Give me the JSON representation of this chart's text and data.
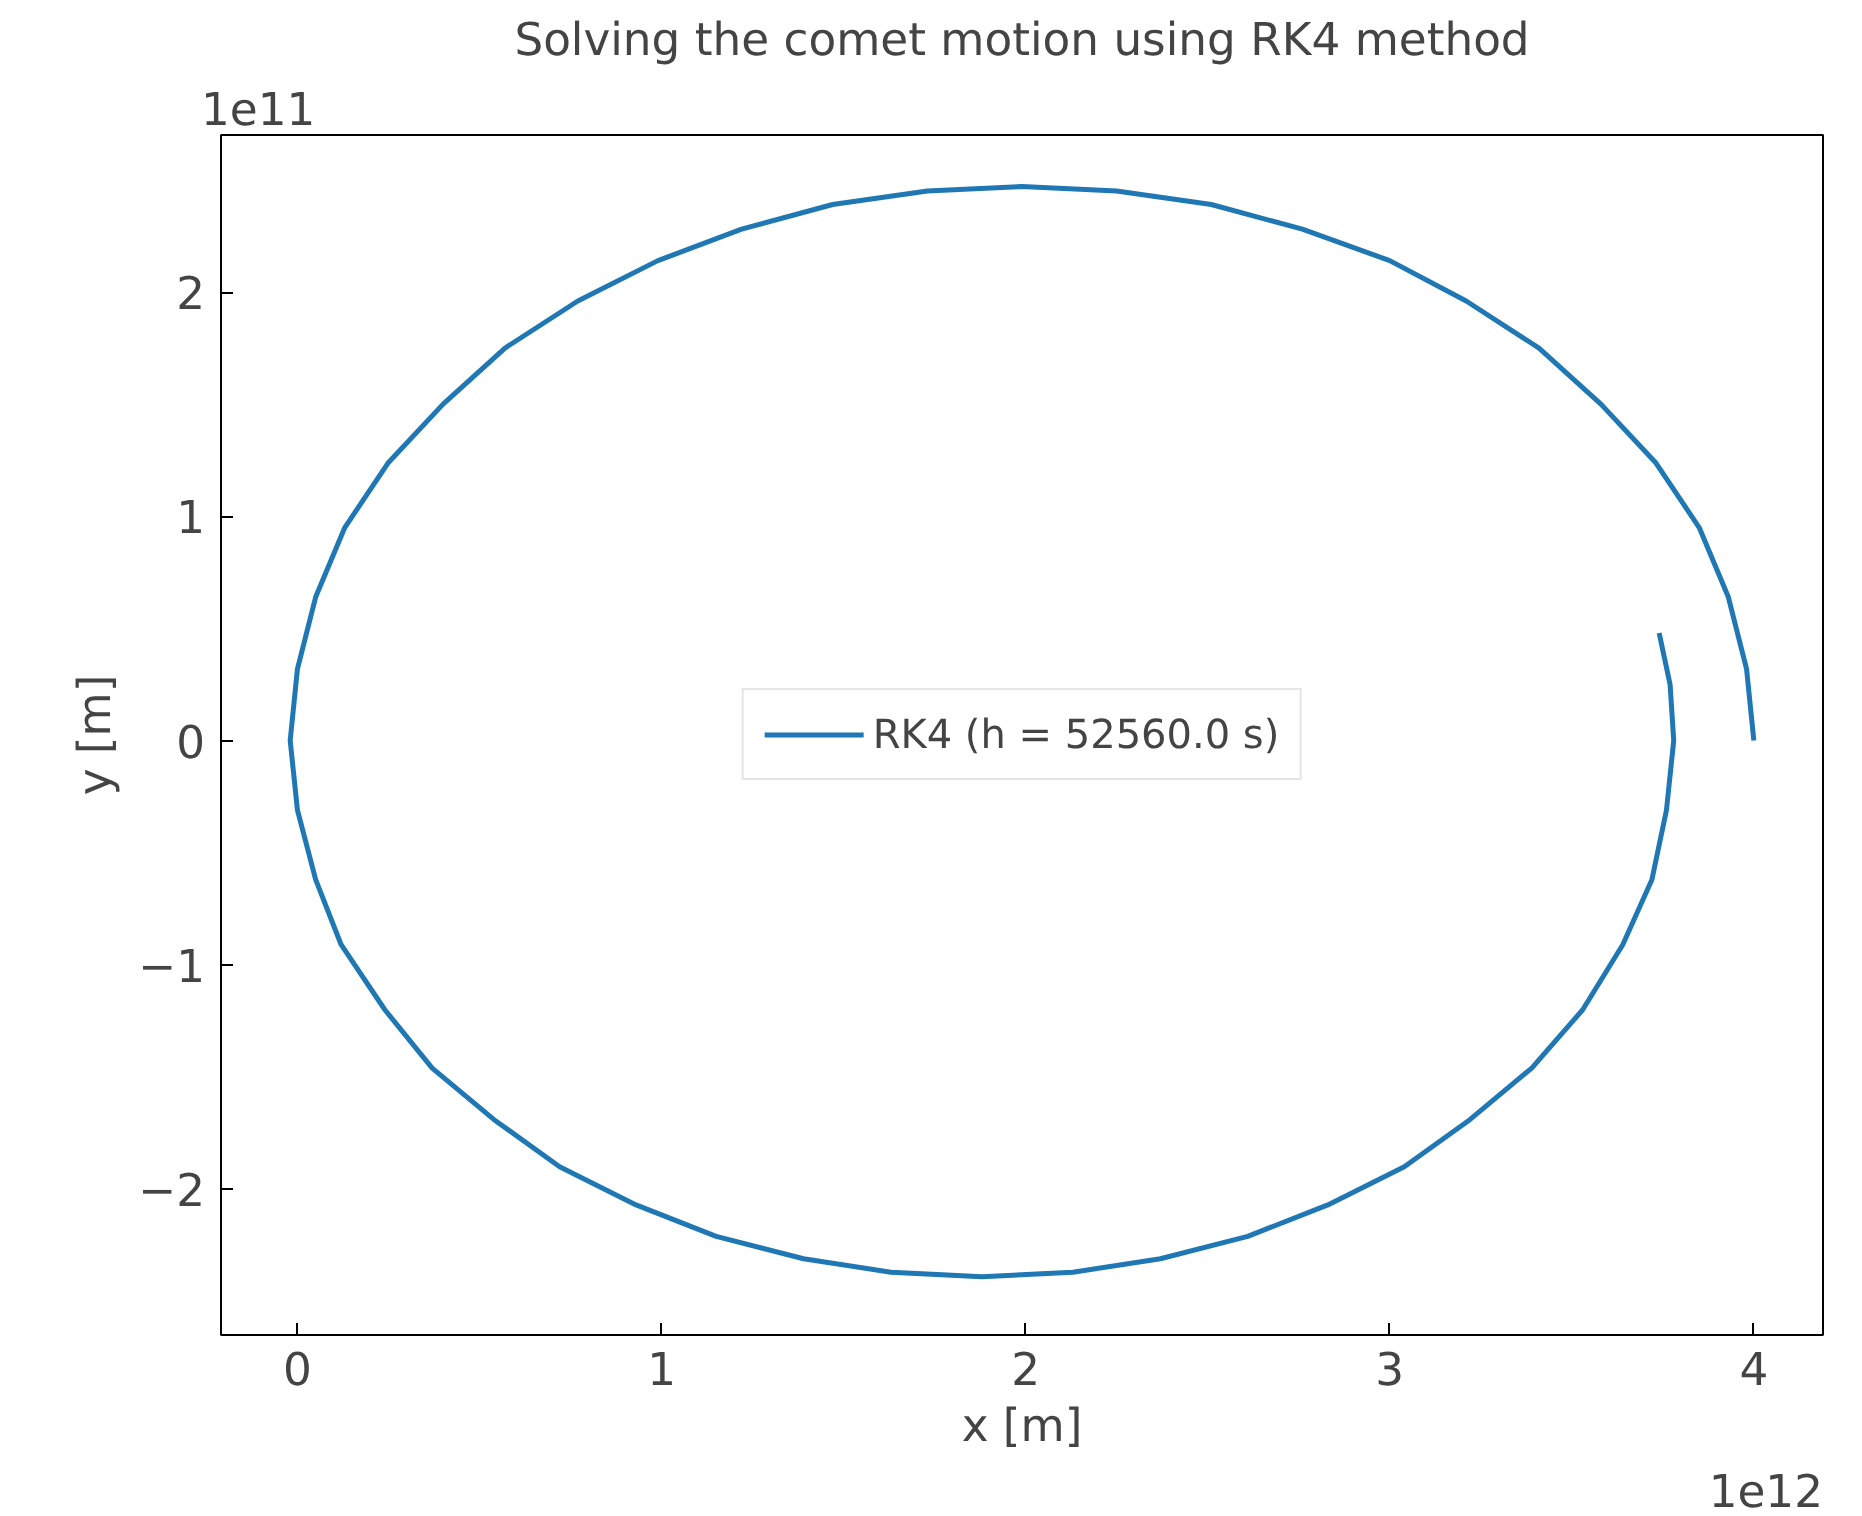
{
  "chart_data": {
    "type": "line",
    "title": "Solving the comet motion using RK4 method",
    "xlabel": "x [m]",
    "ylabel": "y [m]",
    "annotations": [
      "1e11",
      "1e12"
    ],
    "xlim": [
      -0.21,
      4.19
    ],
    "ylim": [
      -2.65,
      2.7
    ],
    "xticks": [
      0,
      1,
      2,
      3,
      4
    ],
    "yticks": [
      {
        "value": -2,
        "label": "−2"
      },
      {
        "value": -1,
        "label": "−1"
      },
      0,
      1,
      2
    ],
    "grid": false,
    "legend": "center",
    "marker": "none",
    "line_style": "solid",
    "series": [
      {
        "name": "RK4 (h = 52560.0 s)",
        "color": "#1f77b4",
        "x": [
          4.0,
          3.98,
          3.93,
          3.85,
          3.73,
          3.58,
          3.41,
          3.21,
          3.0,
          2.76,
          2.51,
          2.25,
          1.99,
          1.73,
          1.47,
          1.22,
          0.99,
          0.77,
          0.57,
          0.4,
          0.25,
          0.13,
          0.05,
          0.0,
          -0.02,
          0.0,
          0.05,
          0.12,
          0.24,
          0.37,
          0.54,
          0.72,
          0.93,
          1.15,
          1.39,
          1.63,
          1.88,
          2.13,
          2.37,
          2.61,
          2.83,
          3.04,
          3.22,
          3.39,
          3.53,
          3.64,
          3.72,
          3.76,
          3.78,
          3.77,
          3.74
        ],
        "values": [
          0,
          0.32,
          0.64,
          0.95,
          1.24,
          1.5,
          1.75,
          1.96,
          2.14,
          2.28,
          2.39,
          2.45,
          2.47,
          2.45,
          2.39,
          2.28,
          2.14,
          1.96,
          1.75,
          1.5,
          1.24,
          0.95,
          0.64,
          0.32,
          0,
          -0.31,
          -0.62,
          -0.91,
          -1.2,
          -1.46,
          -1.69,
          -1.9,
          -2.07,
          -2.21,
          -2.31,
          -2.37,
          -2.39,
          -2.37,
          -2.31,
          -2.21,
          -2.07,
          -1.9,
          -1.69,
          -1.46,
          -1.2,
          -0.91,
          -0.62,
          -0.31,
          0,
          0.25,
          0.48
        ]
      }
    ]
  }
}
